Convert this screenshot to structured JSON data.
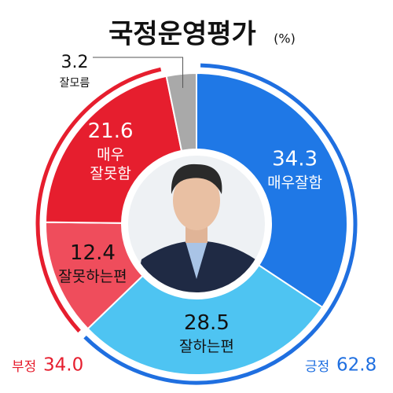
{
  "chart_data": {
    "type": "donut",
    "title": "국정운영평가",
    "unit": "(%)",
    "categories": [
      [
        "매우잘함"
      ],
      [
        "잘하는편"
      ],
      [
        "잘못하는편"
      ],
      [
        "매우",
        "잘못함"
      ],
      [
        "잘모름"
      ]
    ],
    "values": [
      34.3,
      28.5,
      12.4,
      21.6,
      3.2
    ],
    "colors": [
      "#1f78e6",
      "#4ec4f2",
      "#ef4d5c",
      "#e61e2e",
      "#a9a9a9"
    ],
    "label_colors": [
      "#ffffff",
      "#111111",
      "#111111",
      "#ffffff",
      "#111111"
    ],
    "groups": {
      "names": [
        "긍정",
        "부정"
      ],
      "values": [
        62.8,
        34.0
      ],
      "value_labels": [
        "62.8",
        "34.0"
      ],
      "colors": [
        "#1f6fe0",
        "#e61e2e"
      ]
    }
  }
}
